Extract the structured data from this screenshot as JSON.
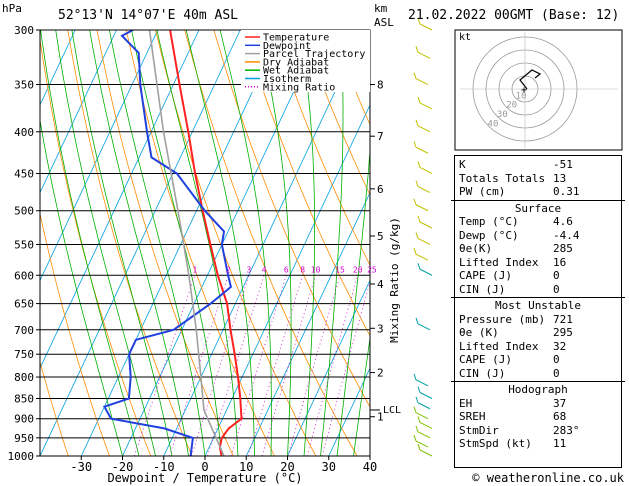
{
  "header": {
    "location": "52°13'N  14°07'E  40m  ASL",
    "valid": "21.02.2022  00GMT  (Base: 12)",
    "left_unit": "hPa",
    "right_unit_1": "km",
    "right_unit_2": "ASL"
  },
  "footer": {
    "credit": "© weatheronline.co.uk"
  },
  "colors": {
    "temperature": "#ff2020",
    "dewpoint": "#2040e0",
    "parcel": "#a0a0a0",
    "dry_adiabat": "#ff8c00",
    "wet_adiabat": "#00b000",
    "isotherm": "#00a0e0",
    "mixing_ratio": "#d000d0",
    "wind": "#80c000"
  },
  "chart_data": {
    "type": "line",
    "title": "",
    "xlabel": "Dewpoint / Temperature (°C)",
    "ylabel_right": "Mixing Ratio (g/kg)",
    "xlim": [
      -40,
      40
    ],
    "ylim_hpa": [
      1000,
      300
    ],
    "y_log_scale": true,
    "skew": true,
    "x_ticks": [
      -30,
      -20,
      -10,
      0,
      10,
      20,
      30,
      40
    ],
    "pressure_levels": [
      300,
      350,
      400,
      450,
      500,
      550,
      600,
      650,
      700,
      750,
      800,
      850,
      900,
      950,
      1000
    ],
    "km_ticks": [
      {
        "label": "8",
        "p": 350
      },
      {
        "label": "7",
        "p": 405
      },
      {
        "label": "6",
        "p": 470
      },
      {
        "label": "5",
        "p": 537
      },
      {
        "label": "4",
        "p": 615
      },
      {
        "label": "3",
        "p": 697
      },
      {
        "label": "2",
        "p": 790
      },
      {
        "label": "1",
        "p": 895
      }
    ],
    "lcl": {
      "label": "LCL",
      "p": 878
    },
    "mixing_ratio_labels": [
      "1",
      "2",
      "3",
      "4",
      "6",
      "8",
      "10",
      "15",
      "20",
      "25"
    ],
    "legend": {
      "position": "top-right",
      "entries": [
        "Temperature",
        "Dewpoint",
        "Parcel Trajectory",
        "Dry Adiabat",
        "Wet Adiabat",
        "Isotherm",
        "Mixing Ratio"
      ]
    },
    "series": [
      {
        "name": "Temperature",
        "points": [
          {
            "p": 1000,
            "t": 4.0
          },
          {
            "p": 975,
            "t": 2.6
          },
          {
            "p": 950,
            "t": 2.0
          },
          {
            "p": 925,
            "t": 2.6
          },
          {
            "p": 900,
            "t": 4.6
          },
          {
            "p": 850,
            "t": 2.0
          },
          {
            "p": 800,
            "t": -1.0
          },
          {
            "p": 750,
            "t": -4.4
          },
          {
            "p": 700,
            "t": -8.2
          },
          {
            "p": 650,
            "t": -12.0
          },
          {
            "p": 600,
            "t": -17.5
          },
          {
            "p": 550,
            "t": -22.8
          },
          {
            "p": 500,
            "t": -28.5
          },
          {
            "p": 450,
            "t": -34.6
          },
          {
            "p": 400,
            "t": -41.0
          },
          {
            "p": 350,
            "t": -48.5
          },
          {
            "p": 300,
            "t": -57.0
          }
        ]
      },
      {
        "name": "Dewpoint",
        "points": [
          {
            "p": 1000,
            "t": -3.5
          },
          {
            "p": 950,
            "t": -5.0
          },
          {
            "p": 925,
            "t": -13.0
          },
          {
            "p": 900,
            "t": -27.0
          },
          {
            "p": 870,
            "t": -30.0
          },
          {
            "p": 850,
            "t": -25.0
          },
          {
            "p": 800,
            "t": -27.0
          },
          {
            "p": 750,
            "t": -30.0
          },
          {
            "p": 720,
            "t": -30.0
          },
          {
            "p": 700,
            "t": -22.0
          },
          {
            "p": 650,
            "t": -16.0
          },
          {
            "p": 620,
            "t": -13.0
          },
          {
            "p": 600,
            "t": -15.0
          },
          {
            "p": 550,
            "t": -20.0
          },
          {
            "p": 530,
            "t": -21.0
          },
          {
            "p": 500,
            "t": -28.0
          },
          {
            "p": 450,
            "t": -39.0
          },
          {
            "p": 430,
            "t": -47.0
          },
          {
            "p": 400,
            "t": -51.0
          },
          {
            "p": 350,
            "t": -58.0
          },
          {
            "p": 320,
            "t": -62.0
          },
          {
            "p": 305,
            "t": -68.0
          },
          {
            "p": 300,
            "t": -66.0
          }
        ]
      },
      {
        "name": "Parcel Trajectory",
        "points": [
          {
            "p": 1000,
            "t": 4.6
          },
          {
            "p": 878,
            "t": -5.5
          },
          {
            "p": 800,
            "t": -10.0
          },
          {
            "p": 700,
            "t": -16.5
          },
          {
            "p": 600,
            "t": -24.5
          },
          {
            "p": 500,
            "t": -34.5
          },
          {
            "p": 400,
            "t": -47.0
          },
          {
            "p": 300,
            "t": -62.0
          }
        ]
      }
    ]
  },
  "hodograph": {
    "unit_label": "kt",
    "ring_labels": [
      "40",
      "30",
      "20",
      "10"
    ]
  },
  "wind_profile_label": "wind barbs",
  "indices": {
    "rows_top": [
      {
        "k": "K",
        "v": "-51"
      },
      {
        "k": "Totals Totals",
        "v": "13"
      },
      {
        "k": "PW (cm)",
        "v": "0.31"
      }
    ],
    "surface": {
      "title": "Surface",
      "rows": [
        {
          "k": "Temp (°C)",
          "v": "4.6"
        },
        {
          "k": "Dewp (°C)",
          "v": "-4.4"
        },
        {
          "k": "θe(K)",
          "v": "285"
        },
        {
          "k": "Lifted Index",
          "v": "16"
        },
        {
          "k": "CAPE (J)",
          "v": "0"
        },
        {
          "k": "CIN (J)",
          "v": "0"
        }
      ]
    },
    "most_unstable": {
      "title": "Most Unstable",
      "rows": [
        {
          "k": "Pressure (mb)",
          "v": "721"
        },
        {
          "k": "θe (K)",
          "v": "295"
        },
        {
          "k": "Lifted Index",
          "v": "32"
        },
        {
          "k": "CAPE (J)",
          "v": "0"
        },
        {
          "k": "CIN (J)",
          "v": "0"
        }
      ]
    },
    "hodograph_box": {
      "title": "Hodograph",
      "rows": [
        {
          "k": "EH",
          "v": "37"
        },
        {
          "k": "SREH",
          "v": "68"
        },
        {
          "k": "StmDir",
          "v": "283°"
        },
        {
          "k": "StmSpd (kt)",
          "v": "11"
        }
      ]
    }
  }
}
